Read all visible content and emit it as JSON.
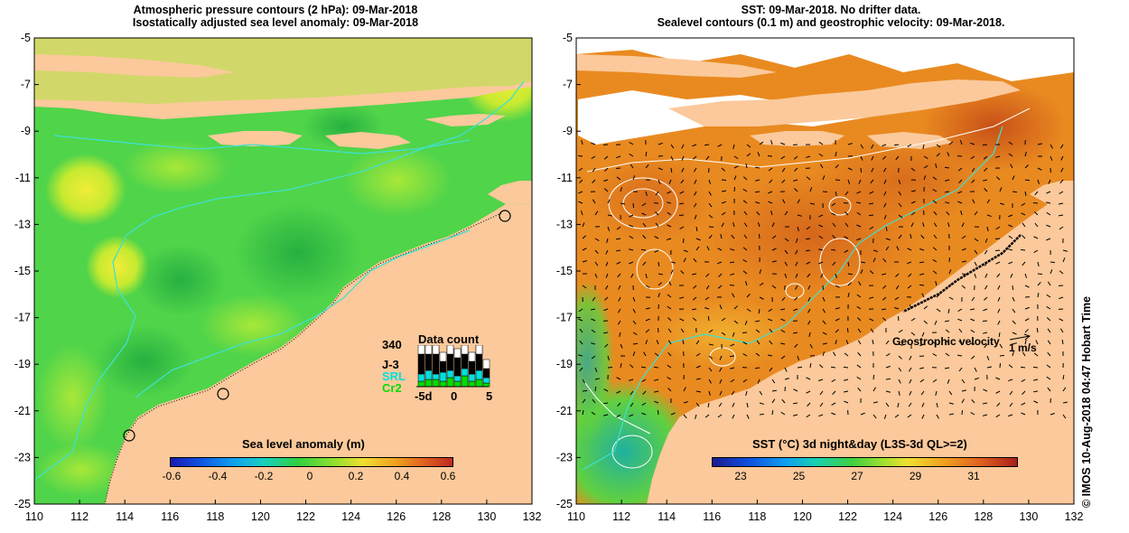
{
  "left_panel": {
    "title_line1": "Atmospheric pressure contours (2 hPa): 09-Mar-2018",
    "title_line2": "Isostatically adjusted sea level anomaly: 09-Mar-2018",
    "x_ticks": [
      "110",
      "112",
      "114",
      "116",
      "118",
      "120",
      "122",
      "124",
      "126",
      "128",
      "130",
      "132"
    ],
    "y_ticks": [
      "-5",
      "-7",
      "-9",
      "-11",
      "-13",
      "-15",
      "-17",
      "-19",
      "-21",
      "-23",
      "-25"
    ],
    "colorbar": {
      "title": "Sea level anomaly (m)",
      "ticks": [
        "-0.6",
        "-0.4",
        "-0.2",
        "0",
        "0.2",
        "0.4",
        "0.6"
      ]
    },
    "data_count": {
      "title": "Data count",
      "max_label": "340",
      "series": [
        "J-3",
        "SRL",
        "Cr2"
      ],
      "series_colors": [
        "#000000",
        "#00e0e0",
        "#00dd00"
      ],
      "x_ticks": [
        "-5d",
        "0",
        "5"
      ]
    }
  },
  "right_panel": {
    "title_line1": "SST: 09-Mar-2018. No drifter data.",
    "title_line2": "Sealevel contours (0.1 m) and geostrophic velocity: 09-Mar-2018.",
    "x_ticks": [
      "110",
      "112",
      "114",
      "116",
      "118",
      "120",
      "122",
      "124",
      "126",
      "128",
      "130",
      "132"
    ],
    "y_ticks": [
      "-5",
      "-7",
      "-9",
      "-11",
      "-13",
      "-15",
      "-17",
      "-19",
      "-21",
      "-23",
      "-25"
    ],
    "velocity_label": "Geostrophic velocity",
    "velocity_scale": "1 m/s",
    "colorbar": {
      "title": "SST (°C) 3d night&day (L3S-3d QL>=2)",
      "ticks": [
        "23",
        "25",
        "27",
        "29",
        "31"
      ]
    }
  },
  "side_credit": "© IMOS 10-Aug-2018 04:47 Hobart Time",
  "colors": {
    "land": "#fbc99b",
    "sla_base": "#50d44a",
    "sst_base": "#e98a20",
    "contour": "#40e0d0"
  }
}
